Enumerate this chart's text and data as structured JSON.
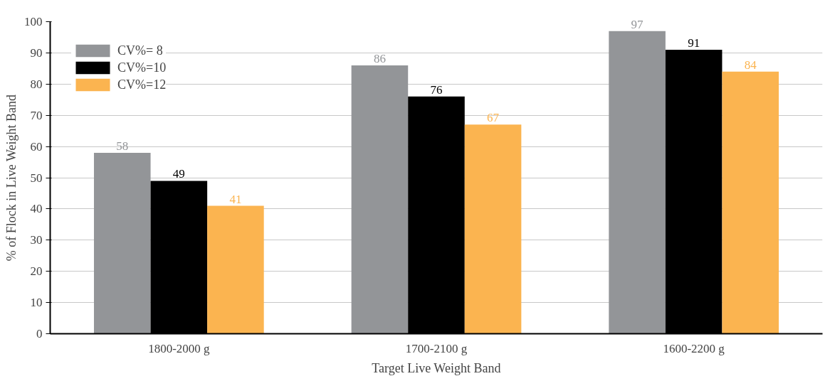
{
  "chart_data": {
    "type": "bar",
    "xlabel": "Target Live Weight Band",
    "ylabel": "% of Flock in Live Weight Band",
    "categories": [
      "1800-2000 g",
      "1700-2100 g",
      "1600-2200 g"
    ],
    "series": [
      {
        "name": "CV%= 8",
        "color": "#939598",
        "values": [
          58,
          86,
          97
        ]
      },
      {
        "name": "CV%=10",
        "color": "#000000",
        "values": [
          49,
          76,
          91
        ]
      },
      {
        "name": "CV%=12",
        "color": "#fbb450",
        "values": [
          41,
          67,
          84
        ]
      }
    ],
    "ylim": [
      0,
      100
    ],
    "yticks": [
      0,
      10,
      20,
      30,
      40,
      50,
      60,
      70,
      80,
      90,
      100
    ],
    "grid": "y",
    "legend": "top left",
    "data_labels": true
  }
}
